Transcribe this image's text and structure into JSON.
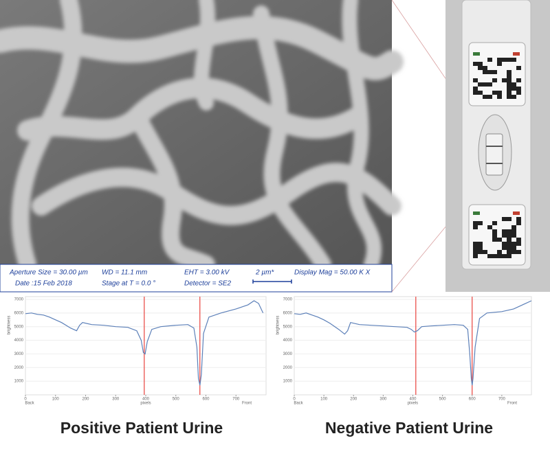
{
  "sem_info": {
    "aperture": "Aperture Size = 30.00 µm",
    "wd": "WD = 11.1 mm",
    "eht": "EHT = 3.00 kV",
    "scale": "2 µm*",
    "mag": "Display Mag = 50.00 K X",
    "date": "Date :15 Feb 2018",
    "stage": "Stage at T = 0.0 °",
    "detector": "Detector = SE2"
  },
  "chart_data": [
    {
      "type": "line",
      "title": "Positive Patient Urine",
      "xlabel": "pixels",
      "ylabel": "brightness",
      "left_note": "Back",
      "right_note": "Front",
      "x": [
        0,
        20,
        40,
        60,
        80,
        100,
        120,
        150,
        170,
        180,
        190,
        220,
        260,
        300,
        340,
        370,
        385,
        392,
        398,
        405,
        420,
        450,
        500,
        540,
        560,
        570,
        575,
        580,
        585,
        592,
        610,
        650,
        700,
        740,
        760,
        775,
        790
      ],
      "series": [
        {
          "name": "brightness",
          "color": "#5b7fb8",
          "values": [
            5950,
            6000,
            5900,
            5850,
            5700,
            5500,
            5300,
            4900,
            4700,
            5100,
            5300,
            5150,
            5100,
            5000,
            4950,
            4700,
            4000,
            3100,
            3000,
            3900,
            4800,
            5000,
            5100,
            5150,
            4900,
            3500,
            1200,
            700,
            1500,
            4500,
            5700,
            6000,
            6300,
            6600,
            6900,
            6700,
            6000
          ]
        }
      ],
      "vlines": [
        395,
        580
      ],
      "vline_color": "#e8413c",
      "xlim": [
        0,
        800
      ],
      "ylim": [
        0,
        7200
      ],
      "xticks": [
        0,
        100,
        200,
        300,
        400,
        500,
        600,
        700
      ],
      "yticks": [
        1000,
        2000,
        3000,
        4000,
        5000,
        6000,
        7000
      ],
      "grid": true
    },
    {
      "type": "line",
      "title": "Negative Patient Urine",
      "xlabel": "pixels",
      "ylabel": "brightness",
      "left_note": "Back",
      "right_note": "Front",
      "x": [
        0,
        20,
        40,
        60,
        80,
        100,
        120,
        150,
        170,
        180,
        190,
        220,
        260,
        300,
        340,
        380,
        395,
        405,
        415,
        430,
        460,
        500,
        540,
        570,
        585,
        592,
        597,
        600,
        603,
        610,
        625,
        650,
        700,
        740,
        770,
        800
      ],
      "series": [
        {
          "name": "brightness",
          "color": "#5b7fb8",
          "values": [
            5950,
            5900,
            6000,
            5850,
            5700,
            5500,
            5250,
            4800,
            4450,
            4700,
            5300,
            5150,
            5100,
            5050,
            5000,
            4950,
            4800,
            4600,
            4700,
            5000,
            5050,
            5100,
            5150,
            5100,
            4800,
            3000,
            1200,
            700,
            1200,
            3500,
            5600,
            6000,
            6100,
            6300,
            6600,
            6900
          ]
        }
      ],
      "vlines": [
        410,
        600
      ],
      "vline_color": "#e8413c",
      "xlim": [
        0,
        800
      ],
      "ylim": [
        0,
        7200
      ],
      "xticks": [
        0,
        100,
        200,
        300,
        400,
        500,
        600,
        700
      ],
      "yticks": [
        1000,
        2000,
        3000,
        4000,
        5000,
        6000,
        7000
      ],
      "grid": true
    }
  ]
}
